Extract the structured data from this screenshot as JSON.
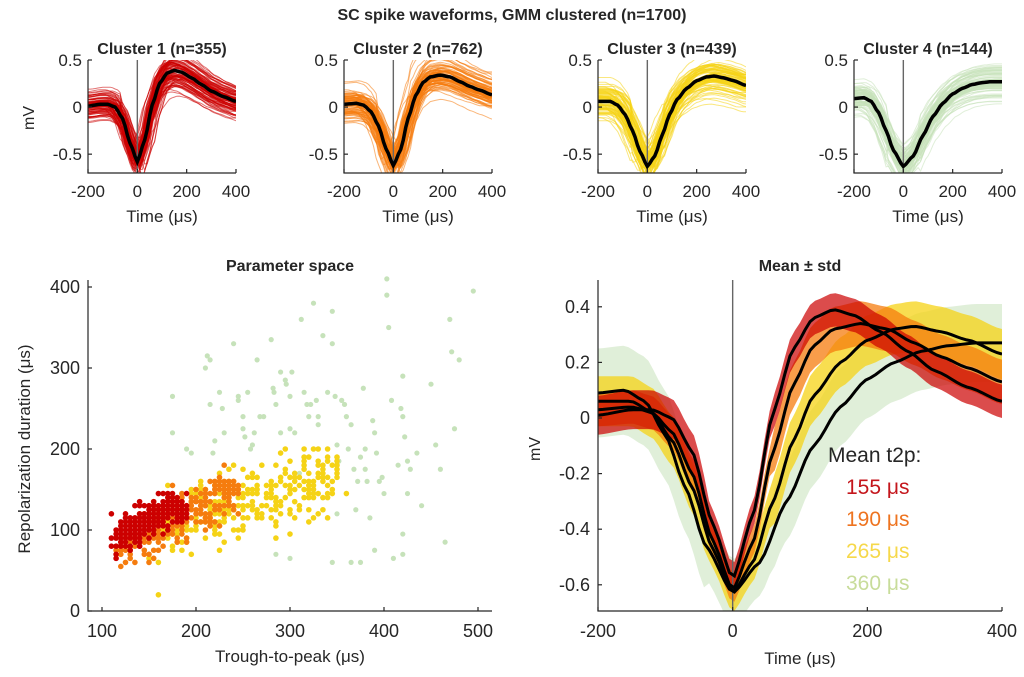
{
  "figure": {
    "suptitle": "SC spike waveforms, GMM clustered (n=1700)"
  },
  "colors": {
    "cluster1": "#cc0000",
    "cluster2": "#f57c0e",
    "cluster3": "#f5d316",
    "cluster4": "#c6e2ba",
    "mean_line": "#000000",
    "axis": "#262626"
  },
  "chart_data": [
    {
      "type": "line",
      "panel": "cluster-1",
      "title": "Cluster 1 (n=355)",
      "xlabel": "Time  (μs)",
      "ylabel": "mV",
      "xlim": [
        -200,
        400
      ],
      "ylim": [
        -0.7,
        0.5
      ],
      "xticks": [
        "-200",
        "0",
        "200",
        "400"
      ],
      "yticks": [
        "-0.5",
        "0",
        "0.5"
      ],
      "ytick_values": [
        -0.5,
        0,
        0.5
      ],
      "xtick_values": [
        -200,
        0,
        200,
        400
      ],
      "n_traces": 355,
      "color_key": "cluster1",
      "mean_waveform": {
        "x": [
          -200,
          -150,
          -120,
          -90,
          -60,
          -30,
          0,
          30,
          60,
          90,
          120,
          150,
          180,
          220,
          260,
          300,
          350,
          400
        ],
        "y": [
          0.01,
          0.03,
          0.03,
          0.0,
          -0.12,
          -0.38,
          -0.58,
          -0.35,
          0.02,
          0.25,
          0.36,
          0.39,
          0.37,
          0.31,
          0.24,
          0.17,
          0.11,
          0.06
        ]
      }
    },
    {
      "type": "line",
      "panel": "cluster-2",
      "title": "Cluster 2 (n=762)",
      "xlabel": "Time  (μs)",
      "ylabel": "",
      "xlim": [
        -200,
        400
      ],
      "ylim": [
        -0.7,
        0.5
      ],
      "xticks": [
        "-200",
        "0",
        "200",
        "400"
      ],
      "yticks": [
        "-0.5",
        "0",
        "0.5"
      ],
      "ytick_values": [
        -0.5,
        0,
        0.5
      ],
      "xtick_values": [
        -200,
        0,
        200,
        400
      ],
      "n_traces": 762,
      "color_key": "cluster2",
      "mean_waveform": {
        "x": [
          -200,
          -150,
          -120,
          -90,
          -60,
          -30,
          0,
          30,
          60,
          90,
          120,
          150,
          190,
          230,
          270,
          310,
          350,
          400
        ],
        "y": [
          0.03,
          0.04,
          0.02,
          -0.05,
          -0.2,
          -0.44,
          -0.62,
          -0.45,
          -0.12,
          0.12,
          0.26,
          0.32,
          0.34,
          0.32,
          0.27,
          0.22,
          0.18,
          0.13
        ]
      }
    },
    {
      "type": "line",
      "panel": "cluster-3",
      "title": "Cluster 3 (n=439)",
      "xlabel": "Time  (μs)",
      "ylabel": "",
      "xlim": [
        -200,
        400
      ],
      "ylim": [
        -0.7,
        0.5
      ],
      "xticks": [
        "-200",
        "0",
        "200",
        "400"
      ],
      "yticks": [
        "-0.5",
        "0",
        "0.5"
      ],
      "ytick_values": [
        -0.5,
        0,
        0.5
      ],
      "xtick_values": [
        -200,
        0,
        200,
        400
      ],
      "n_traces": 439,
      "color_key": "cluster3",
      "mean_waveform": {
        "x": [
          -200,
          -150,
          -120,
          -90,
          -60,
          -30,
          0,
          30,
          60,
          90,
          120,
          160,
          200,
          240,
          270,
          310,
          350,
          400
        ],
        "y": [
          0.06,
          0.06,
          0.02,
          -0.08,
          -0.25,
          -0.47,
          -0.63,
          -0.52,
          -0.3,
          -0.08,
          0.08,
          0.2,
          0.28,
          0.32,
          0.33,
          0.31,
          0.28,
          0.23
        ]
      }
    },
    {
      "type": "line",
      "panel": "cluster-4",
      "title": "Cluster 4 (n=144)",
      "xlabel": "Time  (μs)",
      "ylabel": "",
      "xlim": [
        -200,
        400
      ],
      "ylim": [
        -0.7,
        0.5
      ],
      "xticks": [
        "-200",
        "0",
        "200",
        "400"
      ],
      "yticks": [
        "-0.5",
        "0",
        "0.5"
      ],
      "ytick_values": [
        -0.5,
        0,
        0.5
      ],
      "xtick_values": [
        -200,
        0,
        200,
        400
      ],
      "n_traces": 144,
      "color_key": "cluster4",
      "mean_waveform": {
        "x": [
          -200,
          -160,
          -130,
          -100,
          -70,
          -40,
          0,
          40,
          80,
          120,
          160,
          200,
          240,
          280,
          320,
          360,
          400
        ],
        "y": [
          0.09,
          0.1,
          0.06,
          -0.06,
          -0.25,
          -0.46,
          -0.63,
          -0.52,
          -0.3,
          -0.1,
          0.04,
          0.14,
          0.2,
          0.24,
          0.26,
          0.27,
          0.27
        ]
      }
    },
    {
      "type": "scatter",
      "panel": "parameter-space",
      "title": "Parameter space",
      "xlabel": "Trough-to-peak  (μs)",
      "ylabel": "Repolarization  duration  (μs)",
      "xlim": [
        85,
        515
      ],
      "ylim": [
        0,
        410
      ],
      "xticks": [
        "100",
        "200",
        "300",
        "400",
        "500"
      ],
      "xtick_values": [
        100,
        200,
        300,
        400,
        500
      ],
      "yticks": [
        "0",
        "100",
        "200",
        "300",
        "400"
      ],
      "ytick_values": [
        0,
        100,
        200,
        300,
        400
      ],
      "grid": false,
      "series": [
        {
          "name": "Cluster 1",
          "color_key": "cluster1",
          "region": {
            "x_range": [
              110,
              190
            ],
            "center_line": [
              [
                115,
                90
              ],
              [
                185,
                135
              ]
            ],
            "spread": 14
          },
          "n": 355
        },
        {
          "name": "Cluster 2",
          "color_key": "cluster2",
          "region": {
            "x_range": [
              105,
              245
            ],
            "center_line": [
              [
                120,
                75
              ],
              [
                240,
                150
              ]
            ],
            "spread": 18
          },
          "n": 762
        },
        {
          "name": "Cluster 3",
          "color_key": "cluster3",
          "region": {
            "x_range": [
              140,
              360
            ],
            "center_line": [
              [
                160,
                100
              ],
              [
                350,
                170
              ]
            ],
            "spread": 30
          },
          "n": 439
        },
        {
          "name": "Cluster 4",
          "color_key": "cluster4",
          "points": [
            [
              175,
              265
            ],
            [
              175,
              220
            ],
            [
              190,
              200
            ],
            [
              195,
              195
            ],
            [
              210,
              300
            ],
            [
              212,
              315
            ],
            [
              215,
              310
            ],
            [
              215,
              255
            ],
            [
              218,
              195
            ],
            [
              220,
              210
            ],
            [
              225,
              270
            ],
            [
              228,
              250
            ],
            [
              230,
              220
            ],
            [
              240,
              330
            ],
            [
              245,
              265
            ],
            [
              245,
              260
            ],
            [
              250,
              240
            ],
            [
              250,
              225
            ],
            [
              252,
              215
            ],
            [
              255,
              270
            ],
            [
              258,
              200
            ],
            [
              260,
              205
            ],
            [
              262,
              220
            ],
            [
              265,
              310
            ],
            [
              268,
              240
            ],
            [
              272,
              240
            ],
            [
              280,
              335
            ],
            [
              282,
              275
            ],
            [
              283,
              270
            ],
            [
              285,
              255
            ],
            [
              290,
              220
            ],
            [
              290,
              295
            ],
            [
              295,
              285
            ],
            [
              296,
              280
            ],
            [
              300,
              265
            ],
            [
              300,
              225
            ],
            [
              302,
              295
            ],
            [
              305,
              220
            ],
            [
              310,
              170
            ],
            [
              312,
              360
            ],
            [
              315,
              270
            ],
            [
              318,
              255
            ],
            [
              320,
              240
            ],
            [
              322,
              255
            ],
            [
              325,
              380
            ],
            [
              328,
              260
            ],
            [
              330,
              230
            ],
            [
              330,
              240
            ],
            [
              335,
              340
            ],
            [
              340,
              270
            ],
            [
              345,
              370
            ],
            [
              345,
              330
            ],
            [
              348,
              265
            ],
            [
              350,
              205
            ],
            [
              350,
              120
            ],
            [
              352,
              185
            ],
            [
              355,
              260
            ],
            [
              358,
              255
            ],
            [
              360,
              240
            ],
            [
              362,
              200
            ],
            [
              365,
              230
            ],
            [
              368,
              175
            ],
            [
              370,
              125
            ],
            [
              372,
              160
            ],
            [
              375,
              190
            ],
            [
              378,
              275
            ],
            [
              380,
              200
            ],
            [
              380,
              175
            ],
            [
              382,
              160
            ],
            [
              385,
              115
            ],
            [
              388,
              235
            ],
            [
              390,
              220
            ],
            [
              392,
              195
            ],
            [
              395,
              160
            ],
            [
              398,
              165
            ],
            [
              400,
              145
            ],
            [
              403,
              410
            ],
            [
              403,
              390
            ],
            [
              405,
              350
            ],
            [
              408,
              260
            ],
            [
              410,
              65
            ],
            [
              415,
              180
            ],
            [
              418,
              250
            ],
            [
              420,
              240
            ],
            [
              420,
              290
            ],
            [
              420,
              95
            ],
            [
              422,
              215
            ],
            [
              425,
              185
            ],
            [
              425,
              145
            ],
            [
              428,
              175
            ],
            [
              435,
              195
            ],
            [
              440,
              130
            ],
            [
              450,
              280
            ],
            [
              455,
              205
            ],
            [
              460,
              175
            ],
            [
              465,
              85
            ],
            [
              470,
              360
            ],
            [
              472,
              320
            ],
            [
              475,
              225
            ],
            [
              480,
              310
            ],
            [
              495,
              395
            ],
            [
              285,
              70
            ],
            [
              300,
              65
            ],
            [
              345,
              60
            ],
            [
              365,
              60
            ],
            [
              375,
              60
            ],
            [
              390,
              75
            ],
            [
              420,
              70
            ],
            [
              300,
              95
            ]
          ],
          "n": 144
        }
      ]
    },
    {
      "type": "area",
      "panel": "mean-std",
      "title": "Mean  ±  std",
      "xlabel": "Time  (μs)",
      "ylabel": "mV",
      "xlim": [
        -200,
        400
      ],
      "ylim": [
        -0.7,
        0.5
      ],
      "xticks": [
        "-200",
        "0",
        "200",
        "400"
      ],
      "xtick_values": [
        -200,
        0,
        200,
        400
      ],
      "yticks": [
        "-0.6",
        "-0.4",
        "-0.2",
        "0",
        "0.2",
        "0.4"
      ],
      "ytick_values": [
        -0.6,
        -0.4,
        -0.2,
        0,
        0.2,
        0.4
      ],
      "series": [
        {
          "name": "Cluster 4",
          "color_key": "cluster4",
          "std": [
            0.16,
            0.12,
            0.14
          ]
        },
        {
          "name": "Cluster 3",
          "color_key": "cluster3",
          "std": [
            0.09,
            0.07,
            0.09
          ]
        },
        {
          "name": "Cluster 2",
          "color_key": "cluster2",
          "std": [
            0.06,
            0.05,
            0.08
          ]
        },
        {
          "name": "Cluster 1",
          "color_key": "cluster1",
          "std": [
            0.07,
            0.05,
            0.06
          ]
        }
      ],
      "legend": {
        "title": "Mean t2p:",
        "placement": "lower-right",
        "entries": [
          {
            "label": "155 μs",
            "color_key": "cluster1"
          },
          {
            "label": "190 μs",
            "color_key": "cluster2"
          },
          {
            "label": "265 μs",
            "color_key": "cluster3"
          },
          {
            "label": "360 μs",
            "color_key": "cluster4"
          }
        ]
      }
    }
  ]
}
